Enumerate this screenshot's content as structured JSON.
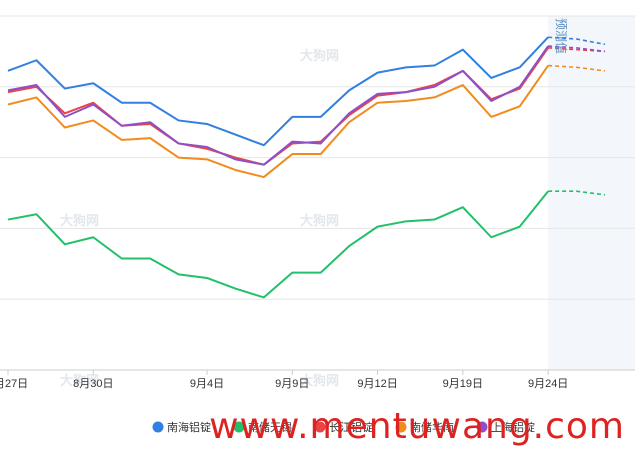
{
  "watermark": {
    "site": "www.mentuwang.com",
    "logo_text": "大狗网"
  },
  "forecast_label": "预测值",
  "colors": {
    "南海铝锭": "#2f80e0",
    "南储无锡": "#22c06a",
    "长江铝锭": "#e84545",
    "南储华南": "#f08c1e",
    "上海铝锭": "#8e4fc8"
  },
  "chart_data": {
    "type": "line",
    "title": "",
    "xlabel": "",
    "ylabel": "",
    "x": [
      "8月27日",
      "8月28日",
      "8月29日",
      "8月30日",
      "8月31日",
      "9月1日",
      "9月2日",
      "9月4日",
      "9月5日",
      "9月6日",
      "9月9日",
      "9月10日",
      "9月11日",
      "9月12日",
      "9月13日",
      "9月18日",
      "9月19日",
      "9月20日",
      "9月23日",
      "9月24日",
      "9月25日",
      "9月26日"
    ],
    "x_tick_labels": [
      "8月27日",
      "8月30日",
      "9月4日",
      "9月9日",
      "9月12日",
      "9月19日",
      "9月24日"
    ],
    "x_tick_index": [
      0,
      3,
      7,
      10,
      13,
      16,
      19
    ],
    "forecast_index": 20,
    "ylim": [
      0,
      100
    ],
    "grid": true,
    "legend_position": "bottom",
    "series": [
      {
        "name": "南海铝锭",
        "values": [
          84.5,
          87.5,
          79.5,
          81,
          75.5,
          75.5,
          70.5,
          69.5,
          66.5,
          63.5,
          71.5,
          71.5,
          79,
          84,
          85.5,
          86,
          90.5,
          82.5,
          85.5,
          94,
          93.5,
          92
        ]
      },
      {
        "name": "南储无锡",
        "values": [
          42.5,
          44,
          35.5,
          37.5,
          31.5,
          31.5,
          27,
          26,
          23,
          20.5,
          27.5,
          27.5,
          35,
          40.5,
          42,
          42.5,
          46,
          37.5,
          40.5,
          50.5,
          50.5,
          49.5
        ]
      },
      {
        "name": "长江铝锭",
        "values": [
          78.5,
          80,
          72.5,
          75.5,
          69,
          69.5,
          64,
          62.5,
          60,
          58,
          64,
          64.5,
          72,
          77.5,
          78.5,
          80.5,
          84.5,
          76.5,
          79.5,
          91,
          90.5,
          90
        ]
      },
      {
        "name": "南储华南",
        "values": [
          75,
          77,
          68.5,
          70.5,
          65,
          65.5,
          60,
          59.5,
          56.5,
          54.5,
          61,
          61,
          70,
          75.5,
          76,
          77,
          80.5,
          71.5,
          74.5,
          86,
          85.5,
          84.5
        ]
      },
      {
        "name": "上海铝锭",
        "values": [
          79,
          80.5,
          71.5,
          75,
          69,
          70,
          64,
          63,
          59.5,
          58,
          64.5,
          64,
          72.5,
          78,
          78.5,
          80,
          84.5,
          76,
          80,
          91.5,
          91,
          90
        ]
      }
    ]
  }
}
